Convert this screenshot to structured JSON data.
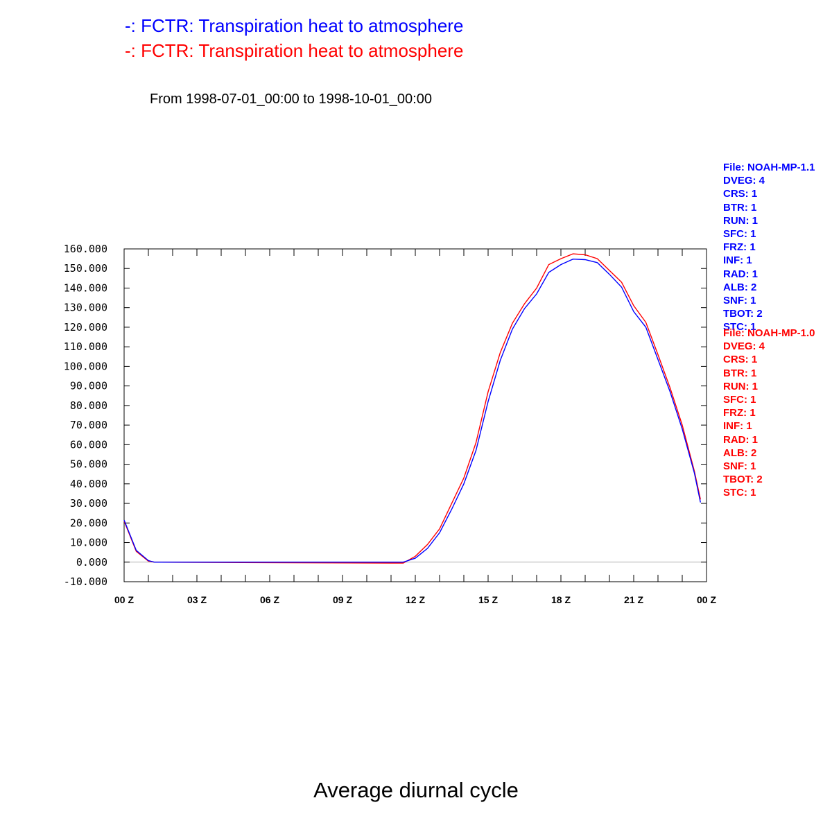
{
  "header": {
    "lines": [
      {
        "text": "-: FCTR: Transpiration heat to atmosphere",
        "color": "#0000ff"
      },
      {
        "text": "-: FCTR: Transpiration heat to atmosphere",
        "color": "#ff0000"
      }
    ],
    "period": "From 1998-07-01_00:00 to 1998-10-01_00:00"
  },
  "footer": {
    "title": "Average diurnal cycle"
  },
  "run_info": [
    {
      "color": "#0000ff",
      "lines": [
        "File: NOAH-MP-1.1",
        "DVEG: 4",
        "CRS: 1",
        "BTR: 1",
        "RUN: 1",
        "SFC: 1",
        "FRZ: 1",
        "INF: 1",
        "RAD: 1",
        "ALB: 2",
        "SNF: 1",
        "TBOT: 2",
        "STC: 1"
      ]
    },
    {
      "color": "#ff0000",
      "lines": [
        "File: NOAH-MP-1.0",
        "DVEG: 4",
        "CRS: 1",
        "BTR: 1",
        "RUN: 1",
        "SFC: 1",
        "FRZ: 1",
        "INF: 1",
        "RAD: 1",
        "ALB: 2",
        "SNF: 1",
        "TBOT: 2",
        "STC: 1"
      ]
    }
  ],
  "chart_data": {
    "type": "line",
    "title": "",
    "xlabel": "",
    "ylabel": "",
    "xlim": [
      0,
      24
    ],
    "ylim": [
      -10,
      160
    ],
    "x_ticks": [
      0,
      3,
      6,
      9,
      12,
      15,
      18,
      21,
      24
    ],
    "x_tick_labels": [
      "00 Z",
      "03 Z",
      "06 Z",
      "09 Z",
      "12 Z",
      "15 Z",
      "18 Z",
      "21 Z",
      "00 Z"
    ],
    "y_ticks": [
      -10,
      0,
      10,
      20,
      30,
      40,
      50,
      60,
      70,
      80,
      90,
      100,
      110,
      120,
      130,
      140,
      150,
      160
    ],
    "y_tick_labels": [
      "-10.000",
      "0.000",
      "10.000",
      "20.000",
      "30.000",
      "40.000",
      "50.000",
      "60.000",
      "70.000",
      "80.000",
      "90.000",
      "100.000",
      "110.000",
      "120.000",
      "130.000",
      "140.000",
      "150.000",
      "160.000"
    ],
    "zero_line": true,
    "series": [
      {
        "color": "#0000ff",
        "x": [
          0,
          0.5,
          1.0,
          1.25,
          1.5,
          11.5,
          12.0,
          12.5,
          13.0,
          13.5,
          14.0,
          14.5,
          15.0,
          15.5,
          16.0,
          16.5,
          17.0,
          17.5,
          18.0,
          18.5,
          19.0,
          19.5,
          20.0,
          20.5,
          21.0,
          21.5,
          22.0,
          22.5,
          23.0,
          23.5,
          23.75
        ],
        "y": [
          21.5,
          6.0,
          0.8,
          0.0,
          0.0,
          0.0,
          2.0,
          7.0,
          15.0,
          27.0,
          40.0,
          57.0,
          82.0,
          103.0,
          119.0,
          129.5,
          137.0,
          148.0,
          152.0,
          154.8,
          154.5,
          153.0,
          147.0,
          140.5,
          128.0,
          120.0,
          103.5,
          87.0,
          68.0,
          45.5,
          30.5
        ]
      },
      {
        "color": "#ff0000",
        "x": [
          0,
          0.5,
          1.0,
          1.25,
          1.5,
          11.0,
          11.5,
          12.0,
          12.5,
          13.0,
          13.5,
          14.0,
          14.5,
          15.0,
          15.5,
          16.0,
          16.5,
          17.0,
          17.5,
          18.0,
          18.5,
          19.0,
          19.5,
          20.0,
          20.5,
          21.0,
          21.5,
          22.0,
          22.5,
          23.0,
          23.5,
          23.75
        ],
        "y": [
          21.0,
          5.5,
          0.5,
          0.0,
          0.0,
          -0.5,
          -0.5,
          3.0,
          9.0,
          17.0,
          30.0,
          43.0,
          61.0,
          87.0,
          107.0,
          122.0,
          132.0,
          140.0,
          152.0,
          155.0,
          157.5,
          157.0,
          155.0,
          149.0,
          143.0,
          131.0,
          122.5,
          106.0,
          89.0,
          70.0,
          46.5,
          32.0
        ]
      }
    ]
  }
}
